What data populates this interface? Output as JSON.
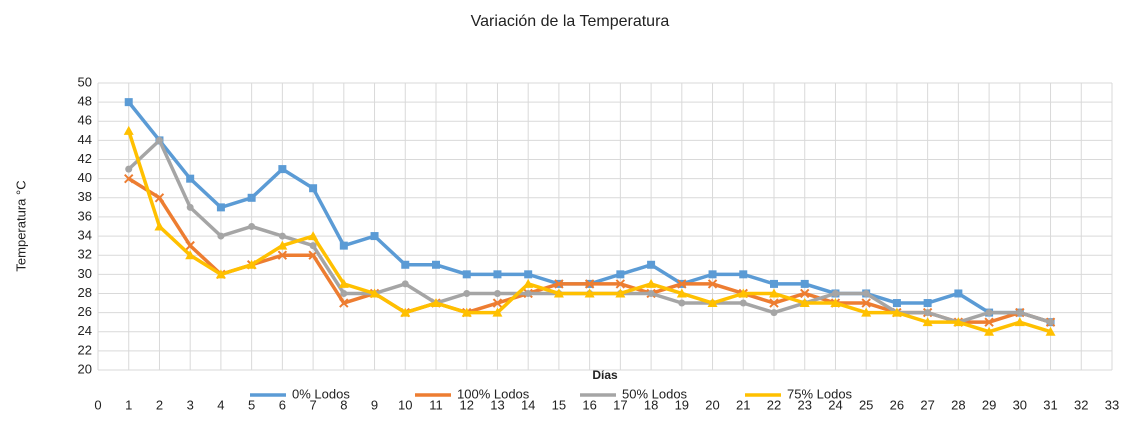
{
  "chart_data": {
    "type": "line",
    "title": "Variación de la Temperatura",
    "x_label": "Días",
    "y_label": "Temperatura °C",
    "x": [
      1,
      2,
      3,
      4,
      5,
      6,
      7,
      8,
      9,
      10,
      11,
      12,
      13,
      14,
      15,
      16,
      17,
      18,
      19,
      20,
      21,
      22,
      23,
      24,
      25,
      26,
      27,
      28,
      29,
      30,
      31
    ],
    "series": [
      {
        "name": "0% Lodos",
        "color": "#5b9bd5",
        "marker": "square",
        "values": [
          48,
          44,
          40,
          37,
          38,
          41,
          39,
          33,
          34,
          31,
          31,
          30,
          30,
          30,
          29,
          29,
          30,
          31,
          29,
          30,
          30,
          29,
          29,
          28,
          28,
          27,
          27,
          28,
          26,
          26,
          25
        ]
      },
      {
        "name": "100% Lodos",
        "color": "#ed7d31",
        "marker": "x",
        "values": [
          40,
          38,
          33,
          30,
          31,
          32,
          32,
          27,
          28,
          26,
          27,
          26,
          27,
          28,
          29,
          29,
          29,
          28,
          29,
          29,
          28,
          27,
          28,
          27,
          27,
          26,
          26,
          25,
          25,
          26,
          25
        ]
      },
      {
        "name": "50% Lodos",
        "color": "#a5a5a5",
        "marker": "circle",
        "values": [
          41,
          44,
          37,
          34,
          35,
          34,
          33,
          28,
          28,
          29,
          27,
          28,
          28,
          28,
          28,
          28,
          28,
          28,
          27,
          27,
          27,
          26,
          27,
          28,
          28,
          26,
          26,
          25,
          26,
          26,
          25
        ]
      },
      {
        "name": "75% Lodos",
        "color": "#ffc000",
        "marker": "triangle",
        "values": [
          45,
          35,
          32,
          30,
          31,
          33,
          34,
          29,
          28,
          26,
          27,
          26,
          26,
          29,
          28,
          28,
          28,
          29,
          28,
          27,
          28,
          28,
          27,
          27,
          26,
          26,
          25,
          25,
          24,
          25,
          24
        ]
      }
    ],
    "xlim": [
      0,
      33
    ],
    "xticks": [
      0,
      1,
      2,
      3,
      4,
      5,
      6,
      7,
      8,
      9,
      10,
      11,
      12,
      13,
      14,
      15,
      16,
      17,
      18,
      19,
      20,
      21,
      22,
      23,
      24,
      25,
      26,
      27,
      28,
      29,
      30,
      31,
      32,
      33
    ],
    "ylim": [
      20,
      50
    ],
    "yticks": [
      20,
      22,
      24,
      26,
      28,
      30,
      32,
      34,
      36,
      38,
      40,
      42,
      44,
      46,
      48,
      50
    ],
    "grid": true,
    "legend": "bottom"
  }
}
